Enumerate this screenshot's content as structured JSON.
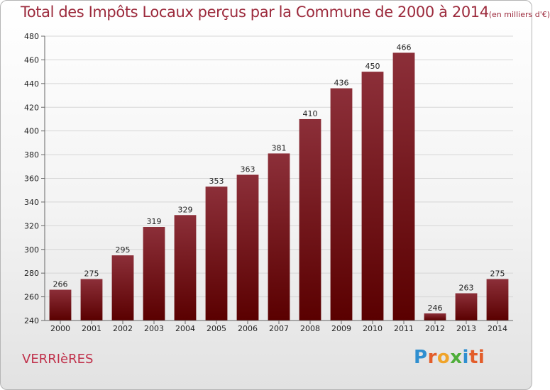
{
  "header": {
    "title": "Total des Impôts Locaux perçus par la Commune de 2000 à 2014",
    "unit": "(en milliers d'€)"
  },
  "footer": {
    "commune": "VERRIèRES",
    "brand_letters": [
      "P",
      "r",
      "o",
      "x",
      "i",
      "ti"
    ]
  },
  "colors": {
    "bar_top": "#8c2f39",
    "bar_bottom": "#5a0000",
    "title": "#9c2a3c"
  },
  "chart_data": {
    "type": "bar",
    "title": "Total des Impôts Locaux perçus par la Commune de 2000 à 2014 (en milliers d'€)",
    "xlabel": "",
    "ylabel": "",
    "categories": [
      "2000",
      "2001",
      "2002",
      "2003",
      "2004",
      "2005",
      "2006",
      "2007",
      "2008",
      "2009",
      "2010",
      "2011",
      "2012",
      "2013",
      "2014"
    ],
    "values": [
      266,
      275,
      295,
      319,
      329,
      353,
      363,
      381,
      410,
      436,
      450,
      466,
      246,
      263,
      275
    ],
    "ylim": [
      240,
      480
    ],
    "yticks": [
      240,
      260,
      280,
      300,
      320,
      340,
      360,
      380,
      400,
      420,
      440,
      460,
      480
    ],
    "grid": true
  }
}
